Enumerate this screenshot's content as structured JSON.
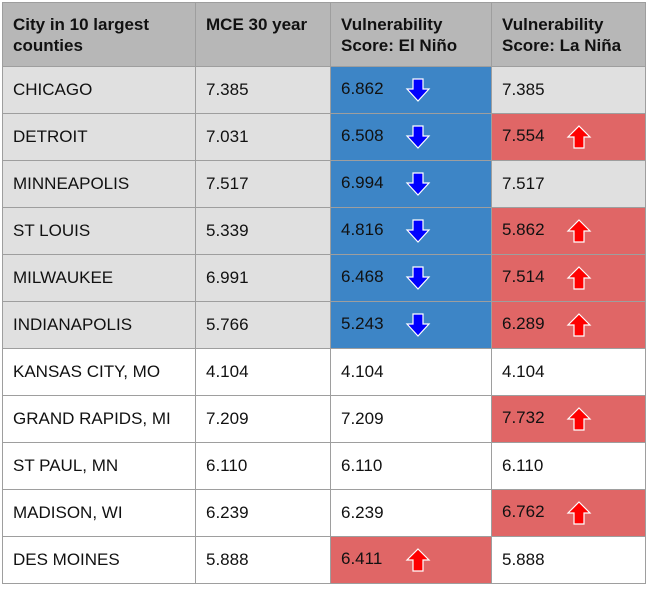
{
  "headers": {
    "city": "City in 10 largest counties",
    "mce": "MCE 30 year",
    "el_nino": "Vulnerability Score: El Niño",
    "la_nina": "Vulnerability Score: La Niña"
  },
  "colors": {
    "header_bg": "#b7b7b7",
    "shaded_bg": "#e0e0e0",
    "blue_cell": "#3d85c6",
    "blue_text": "#0000ff",
    "red_cell": "#e06666",
    "red_text": "#ff0000"
  },
  "rows": [
    {
      "city": "CHICAGO",
      "mce": "7.385",
      "el": "6.862",
      "el_dir": "down",
      "la": "7.385",
      "la_dir": "none",
      "shaded": true
    },
    {
      "city": "DETROIT",
      "mce": "7.031",
      "el": "6.508",
      "el_dir": "down",
      "la": "7.554",
      "la_dir": "up",
      "shaded": true
    },
    {
      "city": "MINNEAPOLIS",
      "mce": "7.517",
      "el": "6.994",
      "el_dir": "down",
      "la": "7.517",
      "la_dir": "none",
      "shaded": true
    },
    {
      "city": "ST LOUIS",
      "mce": "5.339",
      "el": "4.816",
      "el_dir": "down",
      "la": "5.862",
      "la_dir": "up",
      "shaded": true
    },
    {
      "city": "MILWAUKEE",
      "mce": "6.991",
      "el": "6.468",
      "el_dir": "down",
      "la": "7.514",
      "la_dir": "up",
      "shaded": true
    },
    {
      "city": "INDIANAPOLIS",
      "mce": "5.766",
      "el": "5.243",
      "el_dir": "down",
      "la": "6.289",
      "la_dir": "up",
      "shaded": true
    },
    {
      "city": "KANSAS CITY, MO",
      "mce": "4.104",
      "el": "4.104",
      "el_dir": "none",
      "la": "4.104",
      "la_dir": "none",
      "shaded": false
    },
    {
      "city": "GRAND RAPIDS, MI",
      "mce": "7.209",
      "el": "7.209",
      "el_dir": "none",
      "la": "7.732",
      "la_dir": "up",
      "shaded": false
    },
    {
      "city": "ST PAUL, MN",
      "mce": "6.110",
      "el": "6.110",
      "el_dir": "none",
      "la": "6.110",
      "la_dir": "none",
      "shaded": false
    },
    {
      "city": "MADISON, WI",
      "mce": "6.239",
      "el": "6.239",
      "el_dir": "none",
      "la": "6.762",
      "la_dir": "up",
      "shaded": false
    },
    {
      "city": "DES MOINES",
      "mce": "5.888",
      "el": "6.411",
      "el_dir": "up",
      "la": "5.888",
      "la_dir": "none",
      "shaded": false
    }
  ]
}
